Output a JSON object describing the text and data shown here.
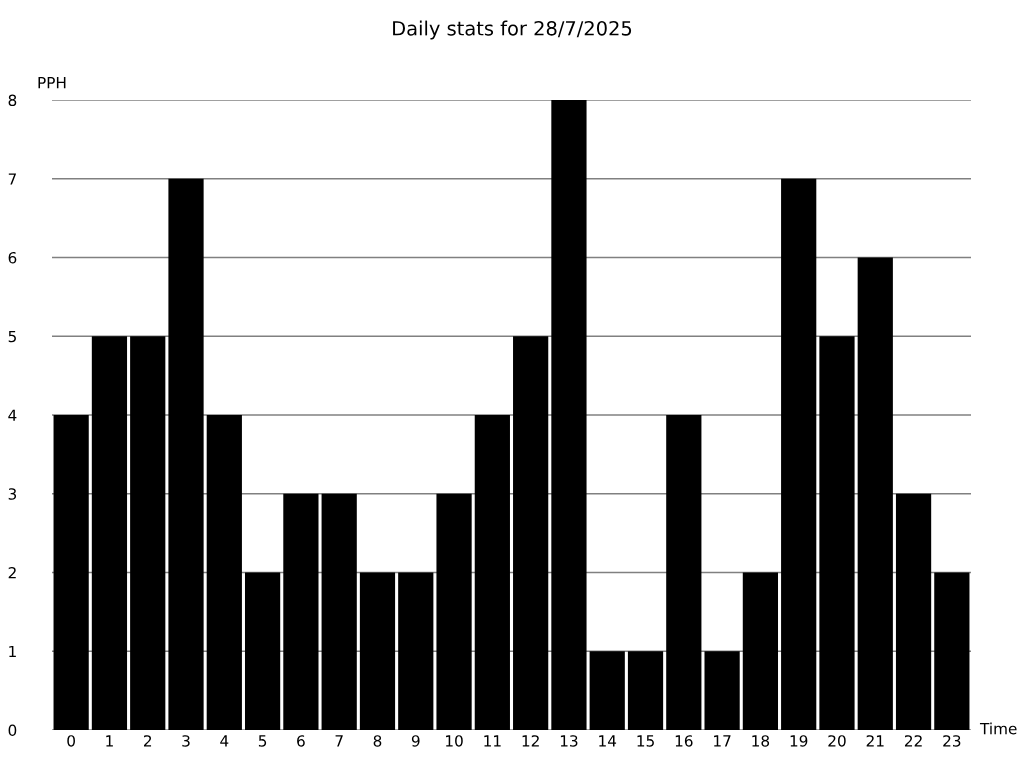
{
  "chart_data": {
    "type": "bar",
    "title": "Daily stats for 28/7/2025",
    "xlabel": "Time",
    "ylabel": "PPH",
    "categories": [
      "0",
      "1",
      "2",
      "3",
      "4",
      "5",
      "6",
      "7",
      "8",
      "9",
      "10",
      "11",
      "12",
      "13",
      "14",
      "15",
      "16",
      "17",
      "18",
      "19",
      "20",
      "21",
      "22",
      "23"
    ],
    "values": [
      4,
      5,
      5,
      7,
      4,
      2,
      3,
      3,
      2,
      2,
      3,
      4,
      5,
      8,
      1,
      1,
      4,
      1,
      2,
      7,
      5,
      6,
      3,
      2
    ],
    "color": "#000000",
    "ylim": [
      0,
      8
    ],
    "yticks": [
      0,
      1,
      2,
      3,
      4,
      5,
      6,
      7,
      8
    ],
    "grid": "y",
    "legend": false
  }
}
